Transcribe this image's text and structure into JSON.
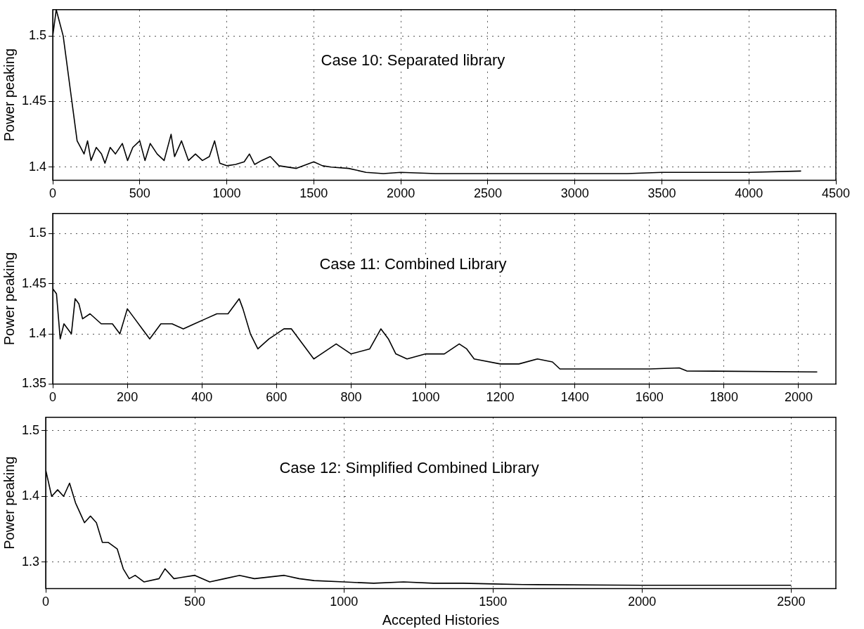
{
  "chart_data": [
    {
      "type": "line",
      "ylabel": "Power peaking",
      "annotations": [
        "Case 10: Separated library"
      ],
      "xlim": [
        0,
        4500
      ],
      "xticks": [
        0,
        500,
        1000,
        1500,
        2000,
        2500,
        3000,
        3500,
        4000,
        4500
      ],
      "ylim": [
        1.39,
        1.52
      ],
      "yticks": [
        1.4,
        1.45,
        1.5
      ],
      "grid": true,
      "legend": false,
      "marker": "none",
      "line_style": "solid",
      "series": [
        {
          "color": "#000000",
          "x": [
            0,
            20,
            40,
            60,
            80,
            100,
            120,
            140,
            160,
            180,
            200,
            220,
            250,
            280,
            300,
            330,
            360,
            400,
            430,
            460,
            500,
            530,
            560,
            600,
            640,
            680,
            700,
            740,
            780,
            820,
            860,
            900,
            930,
            960,
            1000,
            1050,
            1100,
            1130,
            1160,
            1200,
            1250,
            1300,
            1400,
            1500,
            1550,
            1600,
            1700,
            1800,
            1900,
            2000,
            2200,
            2500,
            3000,
            3300,
            3500,
            4000,
            4300
          ],
          "values": [
            1.5,
            1.52,
            1.51,
            1.5,
            1.48,
            1.46,
            1.44,
            1.42,
            1.415,
            1.41,
            1.42,
            1.405,
            1.415,
            1.41,
            1.403,
            1.415,
            1.41,
            1.418,
            1.405,
            1.415,
            1.42,
            1.405,
            1.418,
            1.41,
            1.405,
            1.425,
            1.408,
            1.42,
            1.405,
            1.41,
            1.405,
            1.408,
            1.42,
            1.403,
            1.401,
            1.402,
            1.404,
            1.41,
            1.402,
            1.405,
            1.408,
            1.401,
            1.399,
            1.404,
            1.401,
            1.4,
            1.399,
            1.396,
            1.395,
            1.396,
            1.395,
            1.395,
            1.395,
            1.395,
            1.396,
            1.396,
            1.397
          ]
        }
      ]
    },
    {
      "type": "line",
      "ylabel": "Power peaking",
      "annotations": [
        "Case 11: Combined Library"
      ],
      "xlim": [
        0,
        2100
      ],
      "xticks": [
        0,
        200,
        400,
        600,
        800,
        1000,
        1200,
        1400,
        1600,
        1800,
        2000
      ],
      "ylim": [
        1.35,
        1.52
      ],
      "yticks": [
        1.35,
        1.4,
        1.45,
        1.5
      ],
      "grid": true,
      "legend": false,
      "marker": "none",
      "line_style": "solid",
      "series": [
        {
          "color": "#000000",
          "x": [
            0,
            10,
            20,
            30,
            50,
            60,
            70,
            80,
            100,
            130,
            160,
            180,
            200,
            220,
            240,
            260,
            290,
            320,
            350,
            380,
            410,
            440,
            470,
            500,
            510,
            530,
            550,
            580,
            600,
            620,
            640,
            660,
            680,
            700,
            720,
            760,
            800,
            850,
            880,
            900,
            920,
            950,
            1000,
            1050,
            1090,
            1110,
            1130,
            1200,
            1250,
            1300,
            1340,
            1360,
            1450,
            1600,
            1680,
            1700,
            2050
          ],
          "values": [
            1.445,
            1.44,
            1.395,
            1.41,
            1.4,
            1.435,
            1.43,
            1.415,
            1.42,
            1.41,
            1.41,
            1.4,
            1.425,
            1.415,
            1.405,
            1.395,
            1.41,
            1.41,
            1.405,
            1.41,
            1.415,
            1.42,
            1.42,
            1.435,
            1.425,
            1.4,
            1.385,
            1.395,
            1.4,
            1.405,
            1.405,
            1.395,
            1.385,
            1.375,
            1.38,
            1.39,
            1.38,
            1.385,
            1.405,
            1.395,
            1.38,
            1.375,
            1.38,
            1.38,
            1.39,
            1.385,
            1.375,
            1.37,
            1.37,
            1.375,
            1.372,
            1.365,
            1.365,
            1.365,
            1.366,
            1.363,
            1.362
          ]
        }
      ]
    },
    {
      "type": "line",
      "xlabel": "Accepted Histories",
      "ylabel": "Power peaking",
      "annotations": [
        "Case 12: Simplified Combined Library"
      ],
      "xlim": [
        0,
        2650
      ],
      "xticks": [
        0,
        500,
        1000,
        1500,
        2000,
        2500
      ],
      "ylim": [
        1.26,
        1.52
      ],
      "yticks": [
        1.3,
        1.4,
        1.5
      ],
      "grid": true,
      "legend": false,
      "marker": "none",
      "line_style": "solid",
      "series": [
        {
          "color": "#000000",
          "x": [
            0,
            10,
            20,
            40,
            60,
            80,
            100,
            120,
            130,
            150,
            170,
            190,
            210,
            240,
            260,
            280,
            300,
            330,
            380,
            400,
            430,
            500,
            550,
            600,
            650,
            700,
            800,
            850,
            900,
            1000,
            1100,
            1200,
            1300,
            1400,
            1500,
            1600,
            2000,
            2500
          ],
          "values": [
            1.44,
            1.42,
            1.4,
            1.41,
            1.4,
            1.42,
            1.39,
            1.37,
            1.36,
            1.37,
            1.36,
            1.33,
            1.33,
            1.32,
            1.29,
            1.275,
            1.28,
            1.27,
            1.275,
            1.29,
            1.275,
            1.28,
            1.27,
            1.275,
            1.28,
            1.275,
            1.28,
            1.275,
            1.272,
            1.27,
            1.268,
            1.27,
            1.268,
            1.268,
            1.267,
            1.266,
            1.265,
            1.265
          ]
        }
      ]
    }
  ]
}
